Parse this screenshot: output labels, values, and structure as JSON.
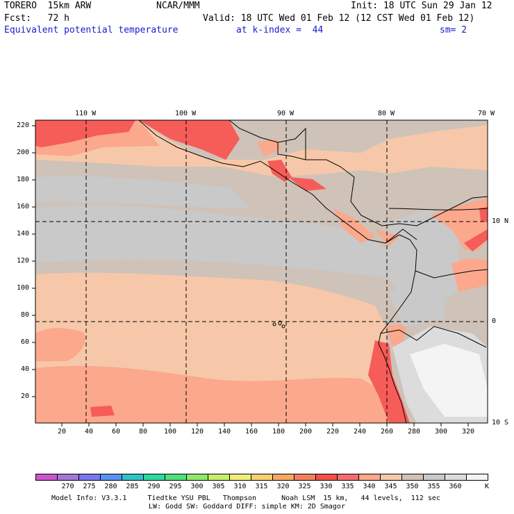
{
  "header": {
    "model": "TORERO  15km ARW",
    "center": "NCAR/MMM",
    "init": "Init: 18 UTC Sun 29 Jan 12",
    "fcst": "Fcst:   72 h",
    "valid": "Valid: 18 UTC Wed 01 Feb 12 (12 CST Wed 01 Feb 12)",
    "field": "Equivalent potential temperature",
    "level": "at k-index =  44",
    "smooth": "sm= 2"
  },
  "map": {
    "lon_labels": [
      "110 W",
      "100 W",
      "90 W",
      "80 W",
      "70 W"
    ],
    "lat_labels": [
      "10 N",
      "0",
      "10 S"
    ],
    "y_ticks": [
      "20",
      "40",
      "60",
      "80",
      "100",
      "120",
      "140",
      "160",
      "180",
      "200",
      "220"
    ],
    "x_ticks": [
      "20",
      "40",
      "60",
      "80",
      "100",
      "120",
      "140",
      "160",
      "180",
      "200",
      "220",
      "240",
      "260",
      "280",
      "300",
      "320"
    ],
    "colors": {
      "pale_orange": "#f6c8a9",
      "salmon": "#fba88c",
      "red": "#f65c58",
      "gray_brown": "#cfc2b8",
      "light_gray": "#c9c9c9",
      "mid_gray": "#dcdcdc",
      "white": "#f4f4f4"
    }
  },
  "colorbar": {
    "labels": [
      "270",
      "275",
      "280",
      "285",
      "290",
      "295",
      "300",
      "305",
      "310",
      "315",
      "320",
      "325",
      "330",
      "335",
      "340",
      "345",
      "350",
      "355",
      "360"
    ],
    "unit": "K",
    "colors": [
      "#cc55cc",
      "#a277d6",
      "#7a77ee",
      "#5595f0",
      "#33c0c8",
      "#2fd8a0",
      "#4ee07a",
      "#8ee86c",
      "#c6ee6c",
      "#eef07a",
      "#f8d070",
      "#f7a860",
      "#f28060",
      "#f25048",
      "#f46d6d",
      "#fba88c",
      "#f6c8a9",
      "#cfc2b8",
      "#c9c9c9",
      "#dcdcdc",
      "#f4f4f4"
    ]
  },
  "footer": {
    "line1": "Model Info: V3.3.1     Tiedtke YSU PBL   Thompson      Noah LSM  15 km,   44 levels,  112 sec",
    "line2": "LW: Godd SW: Goddard DIFF: simple KM: 2D Smagor"
  }
}
